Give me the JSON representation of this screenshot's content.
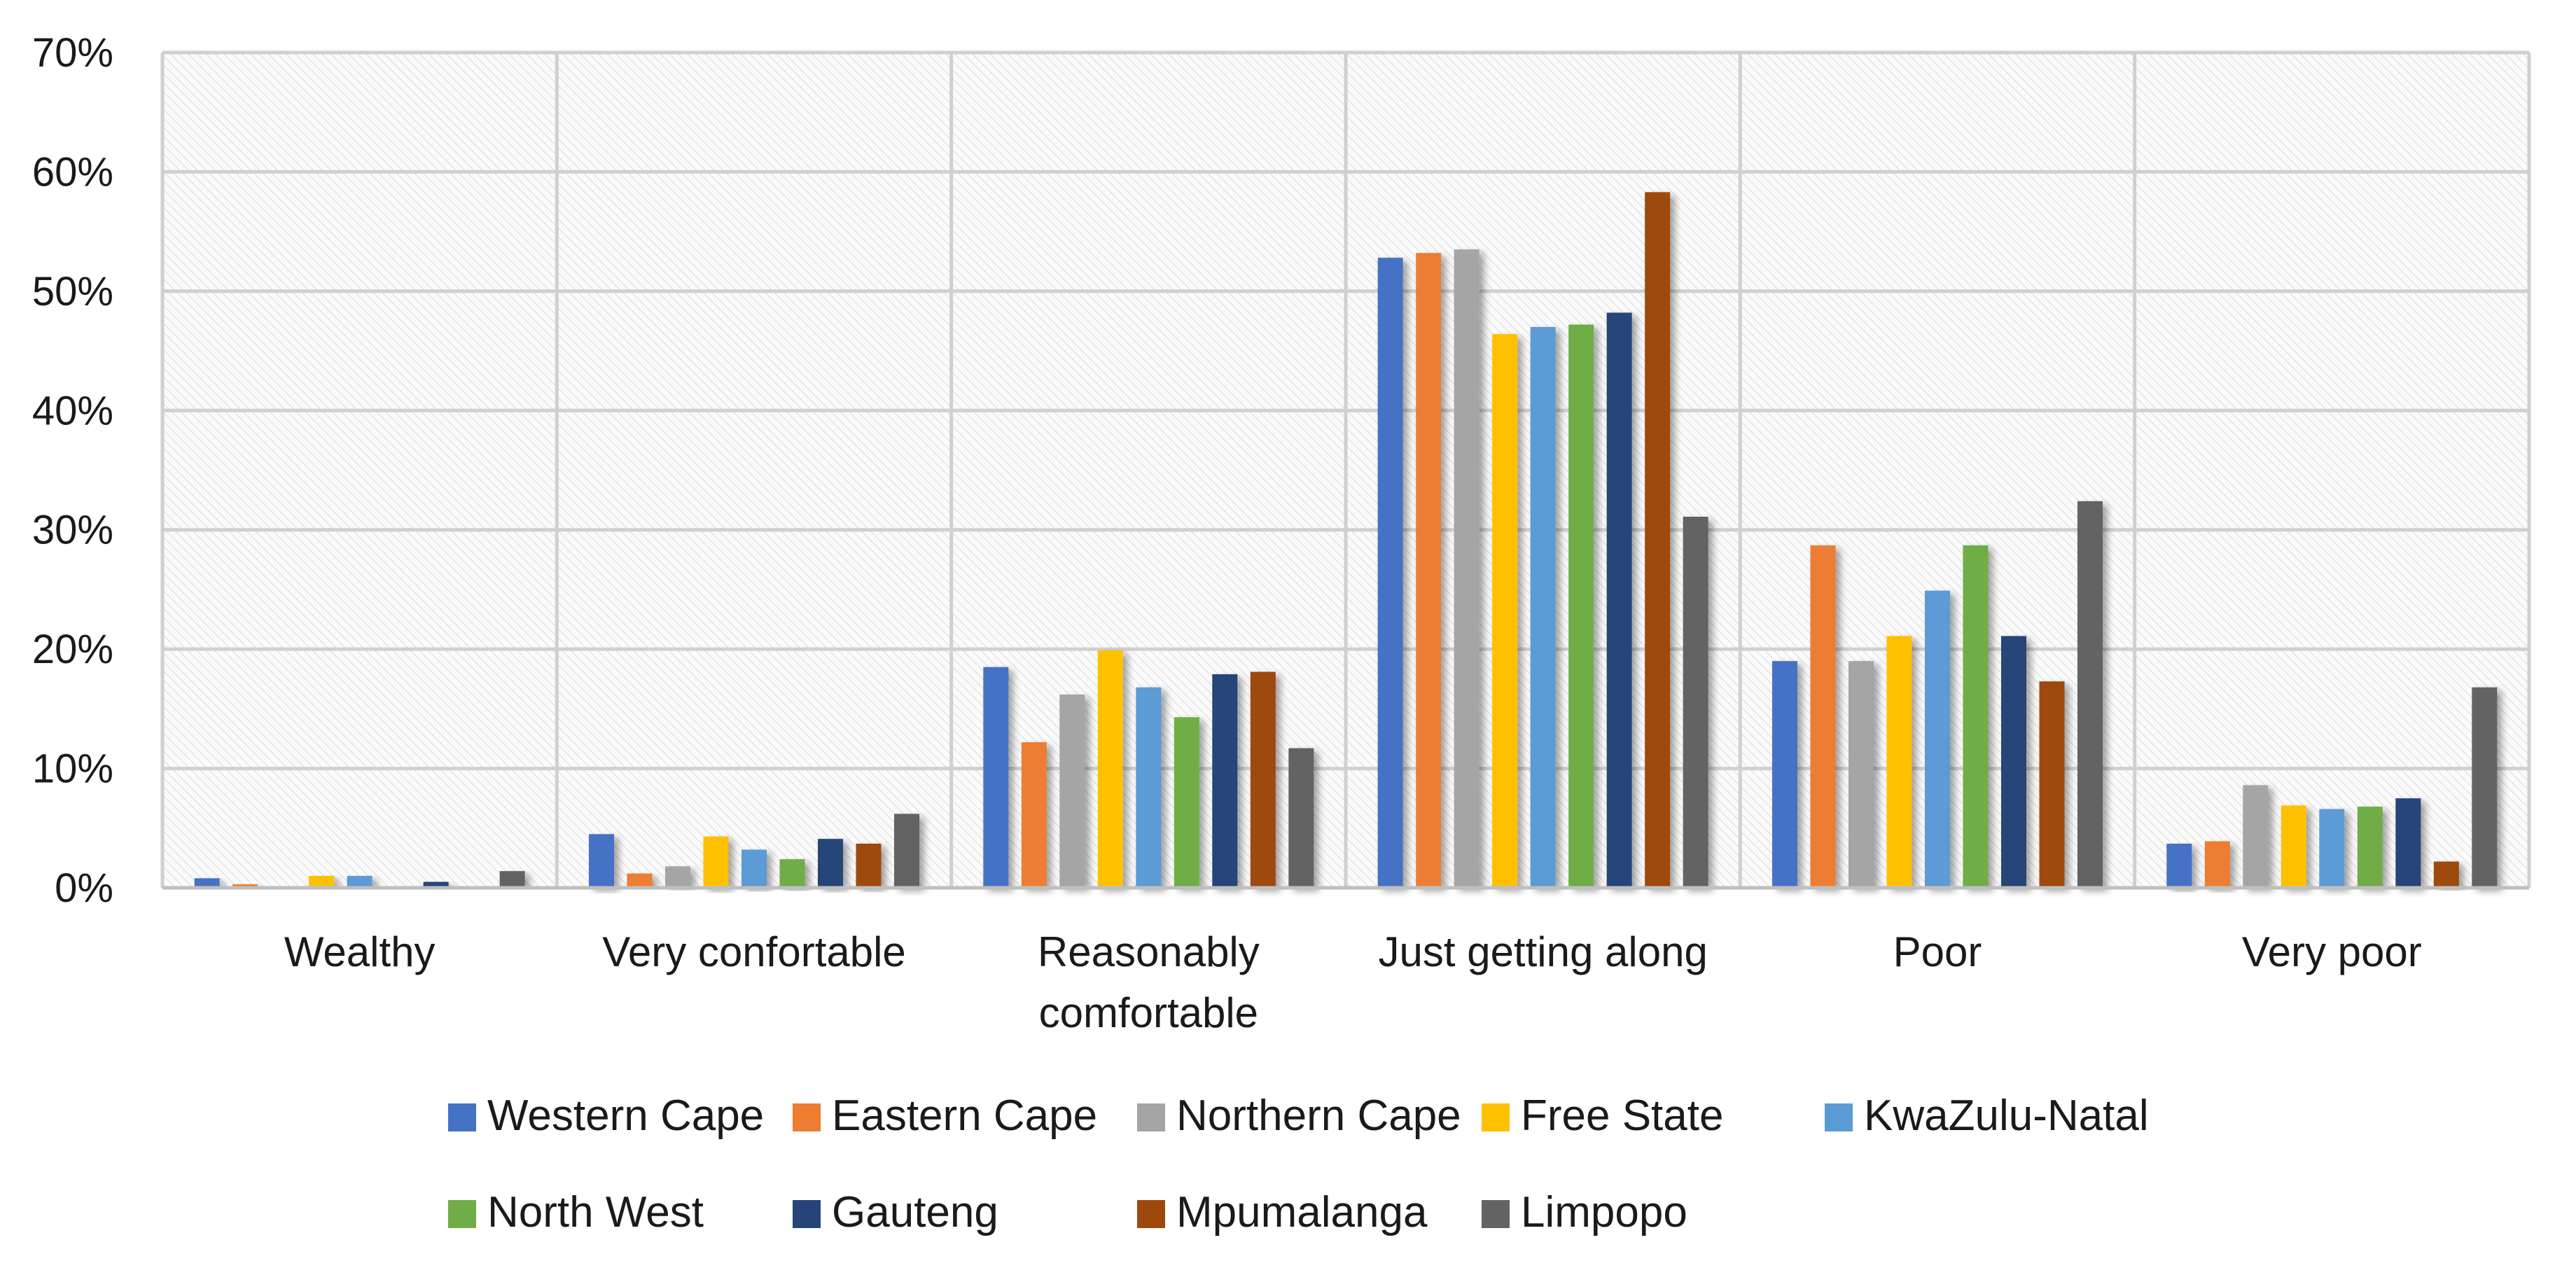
{
  "chart_data": {
    "type": "bar",
    "title": "",
    "xlabel": "",
    "ylabel": "",
    "ylim": [
      0,
      70
    ],
    "y_ticks": [
      "0%",
      "10%",
      "20%",
      "30%",
      "40%",
      "50%",
      "60%",
      "70%"
    ],
    "y_tick_values": [
      0,
      10,
      20,
      30,
      40,
      50,
      60,
      70
    ],
    "grid": true,
    "legend_position": "bottom",
    "categories": [
      [
        "Wealthy"
      ],
      [
        "Very confortable"
      ],
      [
        "Reasonably",
        "comfortable"
      ],
      [
        "Just getting along"
      ],
      [
        "Poor"
      ],
      [
        "Very poor"
      ]
    ],
    "series": [
      {
        "name": "Western Cape",
        "color": "#4472C4",
        "values": [
          0.8,
          4.5,
          18.5,
          52.8,
          19.0,
          3.7
        ]
      },
      {
        "name": "Eastern Cape",
        "color": "#ED7D31",
        "values": [
          0.3,
          1.2,
          12.2,
          53.2,
          28.7,
          3.9
        ]
      },
      {
        "name": "Northern Cape",
        "color": "#A5A5A5",
        "values": [
          0.0,
          1.8,
          16.2,
          53.5,
          19.0,
          8.6
        ]
      },
      {
        "name": "Free State",
        "color": "#FFC000",
        "values": [
          1.0,
          4.3,
          19.9,
          46.4,
          21.1,
          6.9
        ]
      },
      {
        "name": "KwaZulu-Natal",
        "color": "#5B9BD5",
        "values": [
          1.0,
          3.2,
          16.8,
          47.0,
          24.9,
          6.6
        ]
      },
      {
        "name": "North West",
        "color": "#70AD47",
        "values": [
          0.0,
          2.4,
          14.3,
          47.2,
          28.7,
          6.8
        ]
      },
      {
        "name": "Gauteng",
        "color": "#264478",
        "values": [
          0.5,
          4.1,
          17.9,
          48.2,
          21.1,
          7.5
        ]
      },
      {
        "name": "Mpumalanga",
        "color": "#9E480E",
        "values": [
          0.0,
          3.7,
          18.1,
          58.3,
          17.3,
          2.2
        ]
      },
      {
        "name": "Limpopo",
        "color": "#636363",
        "values": [
          1.4,
          6.2,
          11.7,
          31.1,
          32.4,
          16.8
        ]
      }
    ]
  }
}
